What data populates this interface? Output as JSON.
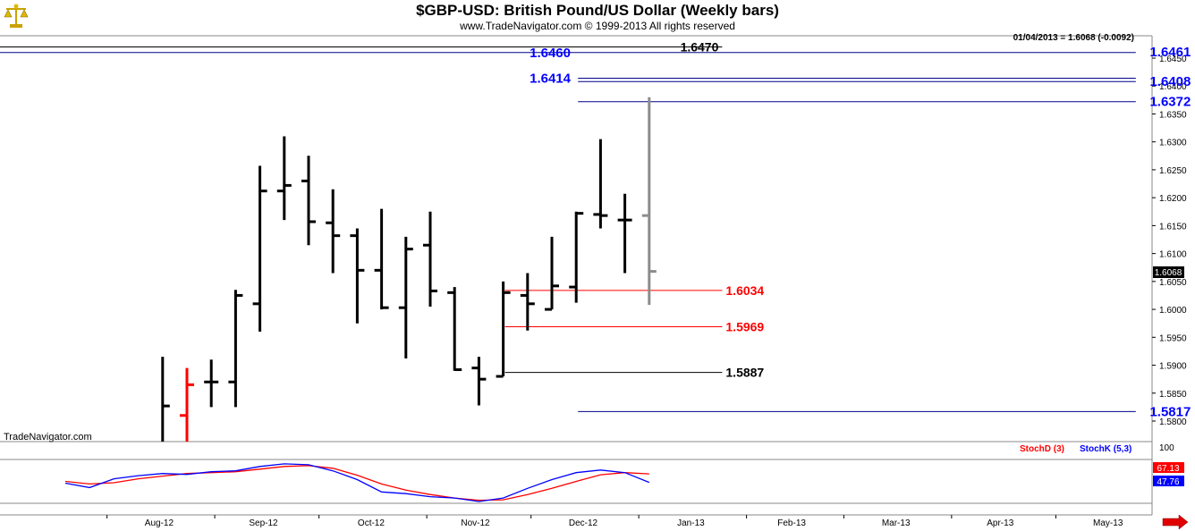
{
  "header": {
    "title": "$GBP-USD:  British Pound/US Dollar  (Weekly bars)",
    "copyright": "www.TradeNavigator.com © 1999-2013 All rights reserved",
    "info_line": "01/04/2013 = 1.6068 (-0.0092)",
    "watermark": "TradeNavigator.com",
    "logo_icon": "balance-scale-icon"
  },
  "colors": {
    "price_bar": "#000000",
    "reversal_bar": "#ff0000",
    "current_bar": "#8c8c8c",
    "resistance_line": "#00008b",
    "support_line": "#ff0000",
    "stochD": "#ff0000",
    "stochK": "#0000ff"
  },
  "chart_data": [
    {
      "type": "ohlc",
      "title": "$GBP-USD:  British Pound/US Dollar  (Weekly bars)",
      "ylim": [
        1.578,
        1.6525
      ],
      "y_ticks": [
        "1.6450",
        "1.6400",
        "1.6350",
        "1.6300",
        "1.6250",
        "1.6200",
        "1.6150",
        "1.6100",
        "1.6050",
        "1.6000",
        "1.5950",
        "1.5900",
        "1.5850",
        "1.5800"
      ],
      "x_ticks": [
        "Aug-12",
        "Sep-12",
        "Oct-12",
        "Nov-12",
        "Dec-12",
        "Jan-13",
        "Feb-13",
        "Mar-13",
        "Apr-13",
        "May-13"
      ],
      "last_price_label": "1.6068",
      "bars": [
        {
          "week": "2012-08-17",
          "open": 1.564,
          "high": 1.5915,
          "low": 1.557,
          "close": 1.5827
        },
        {
          "week": "2012-08-24",
          "open": 1.581,
          "high": 1.5895,
          "low": 1.571,
          "close": 1.5865,
          "reversal": true
        },
        {
          "week": "2012-08-31",
          "open": 1.587,
          "high": 1.591,
          "low": 1.5825,
          "close": 1.587
        },
        {
          "week": "2012-09-07",
          "open": 1.587,
          "high": 1.6035,
          "low": 1.5825,
          "close": 1.6025
        },
        {
          "week": "2012-09-14",
          "open": 1.601,
          "high": 1.6257,
          "low": 1.596,
          "close": 1.6212
        },
        {
          "week": "2012-09-21",
          "open": 1.6212,
          "high": 1.631,
          "low": 1.616,
          "close": 1.6222
        },
        {
          "week": "2012-09-28",
          "open": 1.623,
          "high": 1.6275,
          "low": 1.6115,
          "close": 1.6157
        },
        {
          "week": "2012-10-05",
          "open": 1.6155,
          "high": 1.6215,
          "low": 1.6065,
          "close": 1.6132
        },
        {
          "week": "2012-10-12",
          "open": 1.6132,
          "high": 1.6145,
          "low": 1.5975,
          "close": 1.607
        },
        {
          "week": "2012-10-19",
          "open": 1.607,
          "high": 1.618,
          "low": 1.6,
          "close": 1.6003
        },
        {
          "week": "2012-10-26",
          "open": 1.6003,
          "high": 1.613,
          "low": 1.5912,
          "close": 1.6108
        },
        {
          "week": "2012-11-02",
          "open": 1.6115,
          "high": 1.6175,
          "low": 1.6005,
          "close": 1.6033
        },
        {
          "week": "2012-11-09",
          "open": 1.603,
          "high": 1.604,
          "low": 1.589,
          "close": 1.5892
        },
        {
          "week": "2012-11-16",
          "open": 1.5895,
          "high": 1.5915,
          "low": 1.5828,
          "close": 1.5875
        },
        {
          "week": "2012-11-23",
          "open": 1.588,
          "high": 1.605,
          "low": 1.588,
          "close": 1.603
        },
        {
          "week": "2012-11-30",
          "open": 1.6025,
          "high": 1.6065,
          "low": 1.5962,
          "close": 1.601
        },
        {
          "week": "2012-12-07",
          "open": 1.6,
          "high": 1.613,
          "low": 1.6,
          "close": 1.6042
        },
        {
          "week": "2012-12-14",
          "open": 1.604,
          "high": 1.6175,
          "low": 1.6012,
          "close": 1.6172
        },
        {
          "week": "2012-12-21",
          "open": 1.617,
          "high": 1.6305,
          "low": 1.6145,
          "close": 1.6168
        },
        {
          "week": "2012-12-28",
          "open": 1.616,
          "high": 1.6207,
          "low": 1.6065,
          "close": 1.616
        },
        {
          "week": "2013-01-04",
          "open": 1.6168,
          "high": 1.638,
          "low": 1.6008,
          "close": 1.6068,
          "current": true
        }
      ],
      "levels": [
        {
          "label": "1.6470",
          "value": 1.647,
          "role": "resistance",
          "label_color": "#000000"
        },
        {
          "label": "1.6460",
          "value": 1.646,
          "role": "resistance",
          "label_color": "#0000ff"
        },
        {
          "label": "1.6461",
          "value": 1.6461,
          "role": "resistance",
          "label_color": "#0000ff"
        },
        {
          "label": "1.6414",
          "value": 1.6414,
          "role": "resistance",
          "label_color": "#0000ff"
        },
        {
          "label": "1.6408",
          "value": 1.6408,
          "role": "resistance",
          "label_color": "#0000ff"
        },
        {
          "label": "1.6372",
          "value": 1.6372,
          "role": "resistance",
          "label_color": "#0000ff"
        },
        {
          "label": "1.6034",
          "value": 1.6034,
          "role": "support",
          "label_color": "#ff0000"
        },
        {
          "label": "1.5969",
          "value": 1.5969,
          "role": "support",
          "label_color": "#ff0000"
        },
        {
          "label": "1.5887",
          "value": 1.5887,
          "role": "support",
          "label_color": "#000000"
        },
        {
          "label": "1.5817",
          "value": 1.5817,
          "role": "support",
          "label_color": "#0000ff"
        }
      ]
    },
    {
      "type": "line",
      "ylim": [
        0,
        100
      ],
      "y_ticks": [
        "100"
      ],
      "last_values": {
        "stochD": "67.13",
        "stochK": "47.76"
      },
      "series": [
        {
          "name": "StochD (3)",
          "values": [
            {
              "date": "2012-07-20",
              "value": 50
            },
            {
              "date": "2012-07-27",
              "value": 44
            },
            {
              "date": "2012-08-03",
              "value": 47
            },
            {
              "date": "2012-08-10",
              "value": 56
            },
            {
              "date": "2012-08-17",
              "value": 62
            },
            {
              "date": "2012-08-24",
              "value": 68
            },
            {
              "date": "2012-08-31",
              "value": 70
            },
            {
              "date": "2012-09-07",
              "value": 72
            },
            {
              "date": "2012-09-14",
              "value": 78
            },
            {
              "date": "2012-09-21",
              "value": 84
            },
            {
              "date": "2012-09-28",
              "value": 86
            },
            {
              "date": "2012-10-05",
              "value": 80
            },
            {
              "date": "2012-10-12",
              "value": 64
            },
            {
              "date": "2012-10-19",
              "value": 44
            },
            {
              "date": "2012-10-26",
              "value": 30
            },
            {
              "date": "2012-11-02",
              "value": 20
            },
            {
              "date": "2012-11-09",
              "value": 12
            },
            {
              "date": "2012-11-16",
              "value": 7
            },
            {
              "date": "2012-11-23",
              "value": 8
            },
            {
              "date": "2012-11-30",
              "value": 20
            },
            {
              "date": "2012-12-07",
              "value": 34
            },
            {
              "date": "2012-12-14",
              "value": 50
            },
            {
              "date": "2012-12-21",
              "value": 65
            },
            {
              "date": "2012-12-28",
              "value": 70
            },
            {
              "date": "2013-01-04",
              "value": 67.13
            }
          ]
        },
        {
          "name": "StochK (5,3)",
          "values": [
            {
              "date": "2012-07-20",
              "value": 46
            },
            {
              "date": "2012-07-27",
              "value": 36
            },
            {
              "date": "2012-08-03",
              "value": 56
            },
            {
              "date": "2012-08-10",
              "value": 63
            },
            {
              "date": "2012-08-17",
              "value": 68
            },
            {
              "date": "2012-08-24",
              "value": 66
            },
            {
              "date": "2012-08-31",
              "value": 72
            },
            {
              "date": "2012-09-07",
              "value": 74
            },
            {
              "date": "2012-09-14",
              "value": 84
            },
            {
              "date": "2012-09-21",
              "value": 90
            },
            {
              "date": "2012-09-28",
              "value": 88
            },
            {
              "date": "2012-10-05",
              "value": 74
            },
            {
              "date": "2012-10-12",
              "value": 54
            },
            {
              "date": "2012-10-19",
              "value": 26
            },
            {
              "date": "2012-10-26",
              "value": 22
            },
            {
              "date": "2012-11-02",
              "value": 15
            },
            {
              "date": "2012-11-09",
              "value": 12
            },
            {
              "date": "2012-11-16",
              "value": 4
            },
            {
              "date": "2012-11-23",
              "value": 12
            },
            {
              "date": "2012-11-30",
              "value": 34
            },
            {
              "date": "2012-12-07",
              "value": 54
            },
            {
              "date": "2012-12-14",
              "value": 70
            },
            {
              "date": "2012-12-21",
              "value": 76
            },
            {
              "date": "2012-12-28",
              "value": 70
            },
            {
              "date": "2013-01-04",
              "value": 47.76
            }
          ]
        }
      ]
    }
  ]
}
